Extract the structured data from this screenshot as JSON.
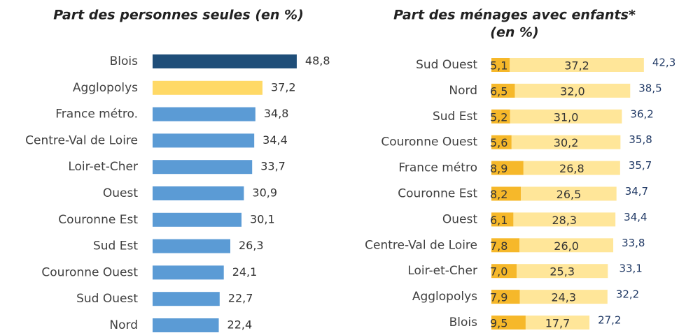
{
  "chart_data": [
    {
      "type": "bar",
      "orientation": "horizontal",
      "title": "Part des personnes seules (en %)",
      "categories": [
        "Blois",
        "Agglopolys",
        "France métro.",
        "Centre-Val de Loire",
        "Loir-et-Cher",
        "Ouest",
        "Couronne Est",
        "Sud Est",
        "Couronne Ouest",
        "Sud Ouest",
        "Nord"
      ],
      "values": [
        48.8,
        37.2,
        34.8,
        34.4,
        33.7,
        30.9,
        30.1,
        26.3,
        24.1,
        22.7,
        22.4
      ],
      "value_labels": [
        "48,8",
        "37,2",
        "34,8",
        "34,4",
        "33,7",
        "30,9",
        "30,1",
        "26,3",
        "24,1",
        "22,7",
        "22,4"
      ],
      "colors": [
        "#1f4e79",
        "#ffd966",
        "#5b9bd5",
        "#5b9bd5",
        "#5b9bd5",
        "#5b9bd5",
        "#5b9bd5",
        "#5b9bd5",
        "#5b9bd5",
        "#5b9bd5",
        "#5b9bd5"
      ]
    },
    {
      "type": "stacked_bar",
      "orientation": "horizontal",
      "title": [
        "Part des ménages avec enfants*",
        "(en %)"
      ],
      "categories": [
        "Sud Ouest",
        "Nord",
        "Sud Est",
        "Couronne Ouest",
        "France métro",
        "Couronne Est",
        "Ouest",
        "Centre-Val de Loire",
        "Loir-et-Cher",
        "Agglopolys",
        "Blois"
      ],
      "series": [
        {
          "color": "#f6b82a",
          "values": [
            5.1,
            6.5,
            5.2,
            5.6,
            8.9,
            8.2,
            6.1,
            7.8,
            7.0,
            7.9,
            9.5
          ],
          "value_labels": [
            "5,1",
            "6,5",
            "5,2",
            "5,6",
            "8,9",
            "8,2",
            "6,1",
            "7,8",
            "7,0",
            "7,9",
            "9,5"
          ]
        },
        {
          "color": "#ffe699",
          "values": [
            37.2,
            32.0,
            31.0,
            30.2,
            26.8,
            26.5,
            28.3,
            26.0,
            25.3,
            24.3,
            17.7
          ],
          "value_labels": [
            "37,2",
            "32,0",
            "31,0",
            "30,2",
            "26,8",
            "26,5",
            "28,3",
            "26,0",
            "25,3",
            "24,3",
            "17,7"
          ]
        }
      ],
      "totals": [
        42.3,
        38.5,
        36.2,
        35.8,
        35.7,
        34.7,
        34.4,
        33.8,
        33.1,
        32.2,
        27.2
      ],
      "total_labels": [
        "42,3",
        "38,5",
        "36,2",
        "35,8",
        "35,7",
        "34,7",
        "34,4",
        "33,8",
        "33,1",
        "32,2",
        "27,2"
      ]
    }
  ]
}
